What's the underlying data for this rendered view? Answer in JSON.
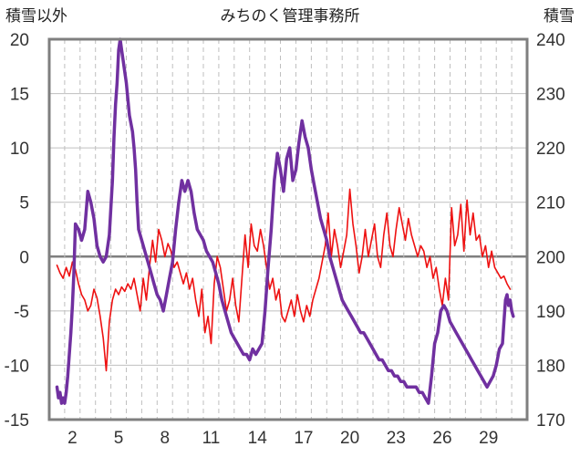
{
  "chart_data": {
    "type": "line",
    "title": "みちのく管理事務所",
    "ylabel_left": "積雪以外",
    "ylabel_right": "積雪",
    "x_ticks": [
      "2",
      "5",
      "8",
      "11",
      "14",
      "17",
      "20",
      "23",
      "26",
      "29"
    ],
    "y_left_ticks": [
      "20",
      "15",
      "10",
      "5",
      "0",
      "-5",
      "-10",
      "-15"
    ],
    "y_right_ticks": [
      "240",
      "230",
      "220",
      "210",
      "200",
      "190",
      "180",
      "170"
    ],
    "xlim": [
      0.5,
      31.5
    ],
    "ylim_left": [
      -15,
      20
    ],
    "ylim_right": [
      170,
      240
    ],
    "grid": true,
    "legend": "none",
    "series": [
      {
        "axis": "left",
        "color": "#ee1111",
        "width": 1.6,
        "points": [
          [
            1.0,
            -0.8
          ],
          [
            1.2,
            -1.5
          ],
          [
            1.4,
            -2.0
          ],
          [
            1.6,
            -1.0
          ],
          [
            1.8,
            -1.8
          ],
          [
            2.0,
            -0.5
          ],
          [
            2.2,
            -1.2
          ],
          [
            2.4,
            -2.5
          ],
          [
            2.6,
            -3.5
          ],
          [
            2.8,
            -4.0
          ],
          [
            3.0,
            -5.0
          ],
          [
            3.2,
            -4.5
          ],
          [
            3.4,
            -3.0
          ],
          [
            3.6,
            -3.8
          ],
          [
            3.8,
            -5.5
          ],
          [
            4.0,
            -7.5
          ],
          [
            4.2,
            -10.5
          ],
          [
            4.4,
            -6.0
          ],
          [
            4.6,
            -4.0
          ],
          [
            4.8,
            -3.0
          ],
          [
            5.0,
            -3.5
          ],
          [
            5.2,
            -2.8
          ],
          [
            5.4,
            -3.2
          ],
          [
            5.6,
            -2.5
          ],
          [
            5.8,
            -3.0
          ],
          [
            6.0,
            -2.0
          ],
          [
            6.2,
            -3.5
          ],
          [
            6.4,
            -5.0
          ],
          [
            6.6,
            -2.0
          ],
          [
            6.8,
            -4.0
          ],
          [
            7.0,
            -1.0
          ],
          [
            7.2,
            1.5
          ],
          [
            7.4,
            -0.5
          ],
          [
            7.6,
            2.5
          ],
          [
            7.8,
            1.5
          ],
          [
            8.0,
            0.0
          ],
          [
            8.2,
            1.2
          ],
          [
            8.4,
            0.5
          ],
          [
            8.6,
            -1.0
          ],
          [
            8.8,
            -0.5
          ],
          [
            9.0,
            -1.5
          ],
          [
            9.2,
            -2.5
          ],
          [
            9.4,
            -1.5
          ],
          [
            9.6,
            -3.0
          ],
          [
            9.8,
            -2.0
          ],
          [
            10.0,
            -4.0
          ],
          [
            10.2,
            -5.5
          ],
          [
            10.4,
            -3.0
          ],
          [
            10.6,
            -7.0
          ],
          [
            10.8,
            -5.5
          ],
          [
            11.0,
            -8.0
          ],
          [
            11.2,
            -2.5
          ],
          [
            11.4,
            0.0
          ],
          [
            11.6,
            -1.0
          ],
          [
            11.8,
            -3.0
          ],
          [
            12.0,
            -5.0
          ],
          [
            12.2,
            -4.0
          ],
          [
            12.4,
            -2.0
          ],
          [
            12.6,
            -4.5
          ],
          [
            12.8,
            -6.0
          ],
          [
            13.0,
            -2.0
          ],
          [
            13.2,
            2.0
          ],
          [
            13.4,
            -1.0
          ],
          [
            13.6,
            3.0
          ],
          [
            13.8,
            1.0
          ],
          [
            14.0,
            0.5
          ],
          [
            14.2,
            2.5
          ],
          [
            14.4,
            1.0
          ],
          [
            14.6,
            -1.0
          ],
          [
            14.8,
            -3.0
          ],
          [
            15.0,
            -2.0
          ],
          [
            15.2,
            -4.0
          ],
          [
            15.4,
            -3.0
          ],
          [
            15.6,
            -5.5
          ],
          [
            15.8,
            -6.0
          ],
          [
            16.0,
            -5.0
          ],
          [
            16.2,
            -4.0
          ],
          [
            16.4,
            -5.5
          ],
          [
            16.6,
            -3.5
          ],
          [
            16.8,
            -5.0
          ],
          [
            17.0,
            -6.0
          ],
          [
            17.2,
            -4.5
          ],
          [
            17.4,
            -5.5
          ],
          [
            17.6,
            -4.0
          ],
          [
            17.8,
            -3.0
          ],
          [
            18.0,
            -2.0
          ],
          [
            18.2,
            -0.5
          ],
          [
            18.4,
            1.0
          ],
          [
            18.6,
            4.0
          ],
          [
            18.8,
            0.0
          ],
          [
            19.0,
            2.5
          ],
          [
            19.2,
            1.0
          ],
          [
            19.4,
            -1.0
          ],
          [
            19.6,
            0.5
          ],
          [
            19.8,
            2.0
          ],
          [
            20.0,
            6.2
          ],
          [
            20.2,
            3.0
          ],
          [
            20.4,
            1.0
          ],
          [
            20.6,
            -1.5
          ],
          [
            20.8,
            0.0
          ],
          [
            21.0,
            2.5
          ],
          [
            21.2,
            0.0
          ],
          [
            21.4,
            1.5
          ],
          [
            21.6,
            3.0
          ],
          [
            21.8,
            0.0
          ],
          [
            22.0,
            -1.0
          ],
          [
            22.2,
            2.0
          ],
          [
            22.4,
            4.0
          ],
          [
            22.6,
            1.0
          ],
          [
            22.8,
            0.0
          ],
          [
            23.0,
            2.5
          ],
          [
            23.2,
            4.5
          ],
          [
            23.4,
            3.0
          ],
          [
            23.6,
            1.5
          ],
          [
            23.8,
            3.5
          ],
          [
            24.0,
            2.0
          ],
          [
            24.2,
            1.0
          ],
          [
            24.4,
            0.0
          ],
          [
            24.6,
            1.0
          ],
          [
            24.8,
            0.5
          ],
          [
            25.0,
            -1.0
          ],
          [
            25.2,
            0.0
          ],
          [
            25.4,
            -2.0
          ],
          [
            25.6,
            -1.0
          ],
          [
            25.8,
            -3.0
          ],
          [
            26.0,
            -4.5
          ],
          [
            26.2,
            -2.0
          ],
          [
            26.4,
            -4.0
          ],
          [
            26.6,
            4.5
          ],
          [
            26.8,
            1.0
          ],
          [
            27.0,
            2.0
          ],
          [
            27.2,
            4.8
          ],
          [
            27.4,
            0.5
          ],
          [
            27.6,
            5.2
          ],
          [
            27.8,
            2.0
          ],
          [
            28.0,
            4.0
          ],
          [
            28.2,
            1.5
          ],
          [
            28.4,
            2.0
          ],
          [
            28.6,
            0.0
          ],
          [
            28.8,
            1.0
          ],
          [
            29.0,
            -1.0
          ],
          [
            29.2,
            0.5
          ],
          [
            29.4,
            -1.0
          ],
          [
            29.6,
            -1.5
          ],
          [
            29.8,
            -2.0
          ],
          [
            30.0,
            -1.8
          ],
          [
            30.2,
            -2.5
          ],
          [
            30.4,
            -3.0
          ]
        ]
      },
      {
        "axis": "right",
        "color": "#7030a0",
        "width": 3.5,
        "points": [
          [
            1.0,
            176
          ],
          [
            1.1,
            174
          ],
          [
            1.2,
            175
          ],
          [
            1.3,
            173
          ],
          [
            1.4,
            174
          ],
          [
            1.5,
            173
          ],
          [
            1.6,
            175
          ],
          [
            1.7,
            178
          ],
          [
            1.8,
            182
          ],
          [
            1.9,
            186
          ],
          [
            2.0,
            191
          ],
          [
            2.1,
            197
          ],
          [
            2.2,
            206
          ],
          [
            2.4,
            205
          ],
          [
            2.6,
            203
          ],
          [
            2.8,
            205
          ],
          [
            3.0,
            212
          ],
          [
            3.2,
            210
          ],
          [
            3.4,
            207
          ],
          [
            3.6,
            202
          ],
          [
            3.8,
            200
          ],
          [
            4.0,
            199
          ],
          [
            4.2,
            200
          ],
          [
            4.4,
            204
          ],
          [
            4.6,
            214
          ],
          [
            4.7,
            222
          ],
          [
            4.8,
            228
          ],
          [
            4.9,
            232
          ],
          [
            5.0,
            238
          ],
          [
            5.1,
            240
          ],
          [
            5.2,
            238
          ],
          [
            5.3,
            236
          ],
          [
            5.5,
            232
          ],
          [
            5.7,
            226
          ],
          [
            5.9,
            223
          ],
          [
            6.0,
            220
          ],
          [
            6.1,
            216
          ],
          [
            6.2,
            210
          ],
          [
            6.3,
            205
          ],
          [
            6.5,
            203
          ],
          [
            6.7,
            201
          ],
          [
            6.9,
            199
          ],
          [
            7.1,
            197
          ],
          [
            7.3,
            195
          ],
          [
            7.5,
            193
          ],
          [
            7.7,
            192
          ],
          [
            7.9,
            190
          ],
          [
            8.1,
            193
          ],
          [
            8.3,
            196
          ],
          [
            8.5,
            199
          ],
          [
            8.7,
            205
          ],
          [
            8.9,
            210
          ],
          [
            9.1,
            214
          ],
          [
            9.3,
            212
          ],
          [
            9.5,
            214
          ],
          [
            9.7,
            212
          ],
          [
            9.9,
            208
          ],
          [
            10.1,
            205
          ],
          [
            10.3,
            204
          ],
          [
            10.5,
            203
          ],
          [
            10.7,
            201
          ],
          [
            10.9,
            200
          ],
          [
            11.1,
            199
          ],
          [
            11.3,
            197
          ],
          [
            11.5,
            195
          ],
          [
            11.7,
            192
          ],
          [
            11.9,
            190
          ],
          [
            12.1,
            188
          ],
          [
            12.3,
            186
          ],
          [
            12.5,
            185
          ],
          [
            12.7,
            184
          ],
          [
            12.9,
            183
          ],
          [
            13.1,
            182
          ],
          [
            13.3,
            182
          ],
          [
            13.5,
            181
          ],
          [
            13.7,
            183
          ],
          [
            13.9,
            182
          ],
          [
            14.1,
            183
          ],
          [
            14.3,
            184
          ],
          [
            14.5,
            190
          ],
          [
            14.7,
            198
          ],
          [
            14.9,
            205
          ],
          [
            15.1,
            214
          ],
          [
            15.3,
            219
          ],
          [
            15.5,
            216
          ],
          [
            15.7,
            212
          ],
          [
            15.9,
            218
          ],
          [
            16.1,
            220
          ],
          [
            16.3,
            214
          ],
          [
            16.5,
            216
          ],
          [
            16.7,
            221
          ],
          [
            16.9,
            225
          ],
          [
            17.1,
            222
          ],
          [
            17.3,
            220
          ],
          [
            17.5,
            216
          ],
          [
            17.7,
            213
          ],
          [
            17.9,
            210
          ],
          [
            18.1,
            207
          ],
          [
            18.3,
            205
          ],
          [
            18.5,
            203
          ],
          [
            18.7,
            200
          ],
          [
            18.9,
            198
          ],
          [
            19.1,
            196
          ],
          [
            19.3,
            194
          ],
          [
            19.5,
            192
          ],
          [
            19.7,
            191
          ],
          [
            19.9,
            190
          ],
          [
            20.1,
            189
          ],
          [
            20.3,
            188
          ],
          [
            20.5,
            187
          ],
          [
            20.7,
            186
          ],
          [
            20.9,
            186
          ],
          [
            21.1,
            185
          ],
          [
            21.3,
            184
          ],
          [
            21.5,
            183
          ],
          [
            21.7,
            182
          ],
          [
            21.9,
            181
          ],
          [
            22.1,
            181
          ],
          [
            22.3,
            180
          ],
          [
            22.5,
            179
          ],
          [
            22.7,
            179
          ],
          [
            22.9,
            178
          ],
          [
            23.1,
            178
          ],
          [
            23.3,
            177
          ],
          [
            23.5,
            177
          ],
          [
            23.7,
            176
          ],
          [
            23.9,
            176
          ],
          [
            24.1,
            176
          ],
          [
            24.3,
            176
          ],
          [
            24.5,
            175
          ],
          [
            24.7,
            175
          ],
          [
            24.9,
            174
          ],
          [
            25.1,
            173
          ],
          [
            25.3,
            178
          ],
          [
            25.5,
            184
          ],
          [
            25.7,
            186
          ],
          [
            25.9,
            190
          ],
          [
            26.1,
            191
          ],
          [
            26.3,
            190
          ],
          [
            26.5,
            188
          ],
          [
            26.7,
            187
          ],
          [
            26.9,
            186
          ],
          [
            27.1,
            185
          ],
          [
            27.3,
            184
          ],
          [
            27.5,
            183
          ],
          [
            27.7,
            182
          ],
          [
            27.9,
            181
          ],
          [
            28.1,
            180
          ],
          [
            28.3,
            179
          ],
          [
            28.5,
            178
          ],
          [
            28.7,
            177
          ],
          [
            28.9,
            176
          ],
          [
            29.1,
            177
          ],
          [
            29.3,
            178
          ],
          [
            29.5,
            180
          ],
          [
            29.7,
            183
          ],
          [
            29.9,
            184
          ],
          [
            30.0,
            188
          ],
          [
            30.1,
            192
          ],
          [
            30.2,
            193
          ],
          [
            30.3,
            191
          ],
          [
            30.4,
            192
          ],
          [
            30.5,
            190
          ],
          [
            30.6,
            189
          ]
        ]
      }
    ]
  }
}
